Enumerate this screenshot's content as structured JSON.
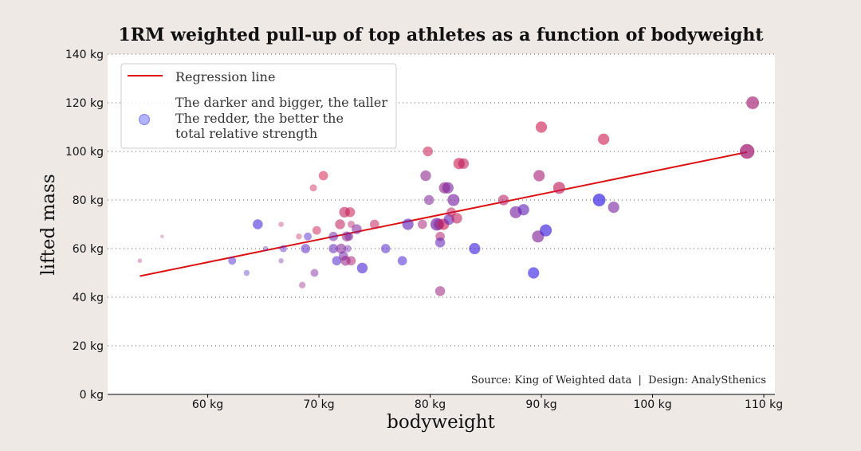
{
  "chart_data": {
    "type": "scatter",
    "title": "1RM weighted pull-up of top athletes as a function of bodyweight",
    "xlabel": "bodyweight",
    "ylabel": "lifted mass",
    "xlim": [
      51,
      111
    ],
    "ylim": [
      0,
      140
    ],
    "x_ticks": [
      {
        "value": 60,
        "label": "60 kg"
      },
      {
        "value": 70,
        "label": "70 kg"
      },
      {
        "value": 80,
        "label": "80 kg"
      },
      {
        "value": 90,
        "label": "90 kg"
      },
      {
        "value": 100,
        "label": "100 kg"
      },
      {
        "value": 110,
        "label": "110 kg"
      }
    ],
    "y_ticks": [
      {
        "value": 0,
        "label": "0 kg"
      },
      {
        "value": 20,
        "label": "20 kg"
      },
      {
        "value": 40,
        "label": "40 kg"
      },
      {
        "value": 60,
        "label": "60 kg"
      },
      {
        "value": 80,
        "label": "80 kg"
      },
      {
        "value": 100,
        "label": "100 kg"
      },
      {
        "value": 120,
        "label": "120 kg"
      },
      {
        "value": 140,
        "label": "140 kg"
      }
    ],
    "grid": "horizontal-dotted",
    "legend_position": "top-left",
    "legend": {
      "line_label": "Regression line",
      "marker_lines": [
        "The darker and bigger, the taller",
        "The redder, the better the",
        "total relative strength"
      ]
    },
    "source_note": "Source: King of Weighted data  |  Design: AnalySthenics",
    "regression": {
      "x": [
        53.9,
        108.5
      ],
      "y": [
        48.7,
        99.7
      ],
      "color": "#dd1111"
    },
    "colors": {
      "blue": "#2222ee",
      "red": "#dd2244",
      "line": "#dd1111",
      "background": "#efe9e6",
      "plot_bg": "#ffffff"
    },
    "points": [
      {
        "x": 53.9,
        "y": 55,
        "size": 0.1,
        "redness": 0.7
      },
      {
        "x": 55.9,
        "y": 65,
        "size": 0.03,
        "redness": 0.7
      },
      {
        "x": 62.2,
        "y": 55,
        "size": 0.35,
        "redness": 0.15
      },
      {
        "x": 63.5,
        "y": 50,
        "size": 0.2,
        "redness": 0.2
      },
      {
        "x": 64.5,
        "y": 70,
        "size": 0.5,
        "redness": 0.1
      },
      {
        "x": 65.2,
        "y": 60,
        "size": 0.15,
        "redness": 0.3
      },
      {
        "x": 66.6,
        "y": 70,
        "size": 0.15,
        "redness": 0.8
      },
      {
        "x": 66.6,
        "y": 55,
        "size": 0.15,
        "redness": 0.4
      },
      {
        "x": 66.8,
        "y": 60,
        "size": 0.3,
        "redness": 0.25
      },
      {
        "x": 68.2,
        "y": 65,
        "size": 0.2,
        "redness": 0.85
      },
      {
        "x": 68.5,
        "y": 45,
        "size": 0.25,
        "redness": 0.6
      },
      {
        "x": 68.8,
        "y": 60,
        "size": 0.45,
        "redness": 0.25
      },
      {
        "x": 69.0,
        "y": 65,
        "size": 0.35,
        "redness": 0.2
      },
      {
        "x": 69.5,
        "y": 85,
        "size": 0.3,
        "redness": 0.9
      },
      {
        "x": 69.6,
        "y": 50,
        "size": 0.35,
        "redness": 0.45
      },
      {
        "x": 69.8,
        "y": 67.5,
        "size": 0.4,
        "redness": 0.9
      },
      {
        "x": 70.4,
        "y": 90,
        "size": 0.45,
        "redness": 0.95
      },
      {
        "x": 71.3,
        "y": 65,
        "size": 0.45,
        "redness": 0.4
      },
      {
        "x": 71.3,
        "y": 60,
        "size": 0.45,
        "redness": 0.3
      },
      {
        "x": 71.6,
        "y": 55,
        "size": 0.45,
        "redness": 0.2
      },
      {
        "x": 71.9,
        "y": 70,
        "size": 0.5,
        "redness": 0.85
      },
      {
        "x": 72.0,
        "y": 60,
        "size": 0.5,
        "redness": 0.5
      },
      {
        "x": 72.2,
        "y": 57,
        "size": 0.45,
        "redness": 0.4
      },
      {
        "x": 72.3,
        "y": 75,
        "size": 0.55,
        "redness": 0.85
      },
      {
        "x": 72.4,
        "y": 55,
        "size": 0.5,
        "redness": 0.6
      },
      {
        "x": 72.5,
        "y": 65,
        "size": 0.5,
        "redness": 0.6
      },
      {
        "x": 72.6,
        "y": 60,
        "size": 0.3,
        "redness": 0.4
      },
      {
        "x": 72.7,
        "y": 65,
        "size": 0.4,
        "redness": 0.45
      },
      {
        "x": 72.8,
        "y": 75,
        "size": 0.5,
        "redness": 0.9
      },
      {
        "x": 72.9,
        "y": 55,
        "size": 0.45,
        "redness": 0.7
      },
      {
        "x": 72.9,
        "y": 70,
        "size": 0.3,
        "redness": 0.8
      },
      {
        "x": 73.4,
        "y": 68,
        "size": 0.5,
        "redness": 0.5
      },
      {
        "x": 73.9,
        "y": 52,
        "size": 0.55,
        "redness": 0.15
      },
      {
        "x": 75.0,
        "y": 70,
        "size": 0.45,
        "redness": 0.85
      },
      {
        "x": 76.0,
        "y": 60,
        "size": 0.45,
        "redness": 0.2
      },
      {
        "x": 77.5,
        "y": 55,
        "size": 0.45,
        "redness": 0.15
      },
      {
        "x": 78.0,
        "y": 70,
        "size": 0.6,
        "redness": 0.3
      },
      {
        "x": 79.3,
        "y": 70,
        "size": 0.45,
        "redness": 0.7
      },
      {
        "x": 79.6,
        "y": 90,
        "size": 0.55,
        "redness": 0.55
      },
      {
        "x": 79.8,
        "y": 100,
        "size": 0.5,
        "redness": 0.9
      },
      {
        "x": 79.9,
        "y": 80,
        "size": 0.5,
        "redness": 0.5
      },
      {
        "x": 80.6,
        "y": 70,
        "size": 0.7,
        "redness": 0.4
      },
      {
        "x": 80.8,
        "y": 70,
        "size": 0.55,
        "redness": 0.55
      },
      {
        "x": 80.9,
        "y": 65,
        "size": 0.45,
        "redness": 0.75
      },
      {
        "x": 80.9,
        "y": 42.5,
        "size": 0.5,
        "redness": 0.65
      },
      {
        "x": 80.9,
        "y": 62.5,
        "size": 0.5,
        "redness": 0.3
      },
      {
        "x": 81.2,
        "y": 70,
        "size": 0.6,
        "redness": 0.9
      },
      {
        "x": 81.3,
        "y": 85,
        "size": 0.6,
        "redness": 0.6
      },
      {
        "x": 81.6,
        "y": 85,
        "size": 0.6,
        "redness": 0.45
      },
      {
        "x": 81.7,
        "y": 72,
        "size": 0.55,
        "redness": 0.3
      },
      {
        "x": 81.9,
        "y": 75,
        "size": 0.45,
        "redness": 0.85
      },
      {
        "x": 82.1,
        "y": 80,
        "size": 0.65,
        "redness": 0.45
      },
      {
        "x": 82.4,
        "y": 72.5,
        "size": 0.55,
        "redness": 0.85
      },
      {
        "x": 82.6,
        "y": 95,
        "size": 0.6,
        "redness": 0.9
      },
      {
        "x": 83.0,
        "y": 95,
        "size": 0.55,
        "redness": 0.85
      },
      {
        "x": 84.0,
        "y": 60,
        "size": 0.6,
        "redness": 0.1
      },
      {
        "x": 86.6,
        "y": 80,
        "size": 0.55,
        "redness": 0.8
      },
      {
        "x": 87.7,
        "y": 75,
        "size": 0.65,
        "redness": 0.45
      },
      {
        "x": 88.4,
        "y": 76,
        "size": 0.6,
        "redness": 0.3
      },
      {
        "x": 89.3,
        "y": 50,
        "size": 0.6,
        "redness": 0.05
      },
      {
        "x": 89.7,
        "y": 65,
        "size": 0.65,
        "redness": 0.5
      },
      {
        "x": 89.8,
        "y": 90,
        "size": 0.6,
        "redness": 0.7
      },
      {
        "x": 90.0,
        "y": 110,
        "size": 0.6,
        "redness": 0.9
      },
      {
        "x": 90.4,
        "y": 67.5,
        "size": 0.65,
        "redness": 0.1
      },
      {
        "x": 91.6,
        "y": 85,
        "size": 0.65,
        "redness": 0.85
      },
      {
        "x": 95.2,
        "y": 80,
        "size": 0.7,
        "redness": 0.05
      },
      {
        "x": 95.6,
        "y": 105,
        "size": 0.6,
        "redness": 0.9
      },
      {
        "x": 96.5,
        "y": 77,
        "size": 0.6,
        "redness": 0.45
      },
      {
        "x": 108.5,
        "y": 100,
        "size": 0.85,
        "redness": 0.7
      },
      {
        "x": 109.0,
        "y": 120,
        "size": 0.7,
        "redness": 0.7
      }
    ]
  }
}
